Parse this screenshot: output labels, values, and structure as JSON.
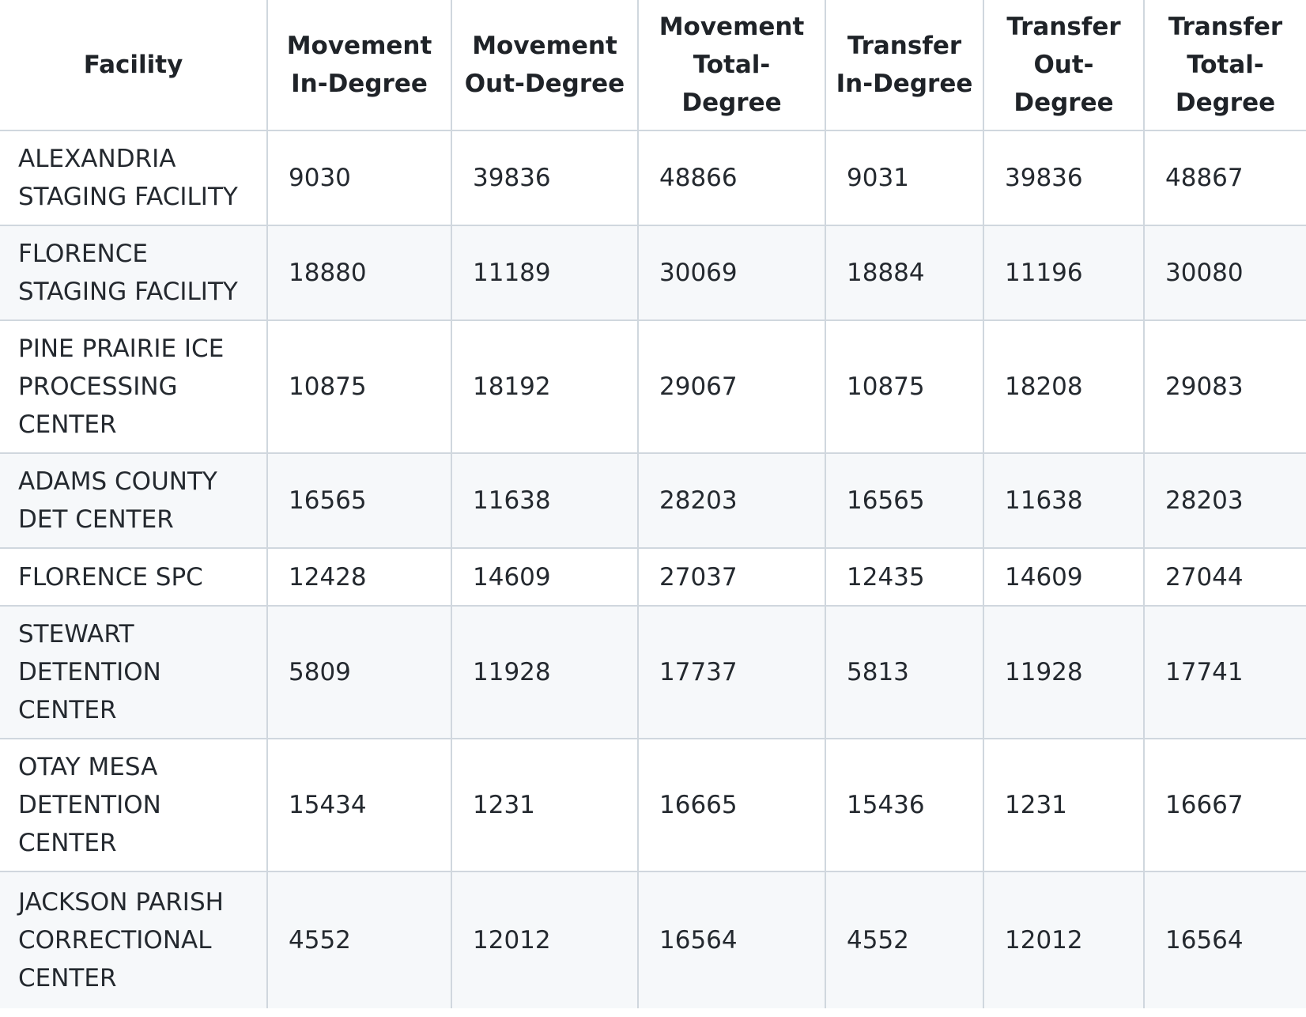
{
  "table": {
    "headers": {
      "facility": "Facility",
      "movement_in": "Movement In-Degree",
      "movement_out": "Movement Out-Degree",
      "movement_total": "Movement Total-Degree",
      "transfer_in": "Transfer In-Degree",
      "transfer_out": "Transfer Out-Degree",
      "transfer_total": "Transfer Total-Degree"
    },
    "rows": [
      {
        "facility": "ALEXANDRIA STAGING FACILITY",
        "movement_in": "9030",
        "movement_out": "39836",
        "movement_total": "48866",
        "transfer_in": "9031",
        "transfer_out": "39836",
        "transfer_total": "48867"
      },
      {
        "facility": "FLORENCE STAGING FACILITY",
        "movement_in": "18880",
        "movement_out": "11189",
        "movement_total": "30069",
        "transfer_in": "18884",
        "transfer_out": "11196",
        "transfer_total": "30080"
      },
      {
        "facility": "PINE PRAIRIE ICE PROCESSING CENTER",
        "movement_in": "10875",
        "movement_out": "18192",
        "movement_total": "29067",
        "transfer_in": "10875",
        "transfer_out": "18208",
        "transfer_total": "29083"
      },
      {
        "facility": "ADAMS COUNTY DET CENTER",
        "movement_in": "16565",
        "movement_out": "11638",
        "movement_total": "28203",
        "transfer_in": "16565",
        "transfer_out": "11638",
        "transfer_total": "28203"
      },
      {
        "facility": "FLORENCE SPC",
        "movement_in": "12428",
        "movement_out": "14609",
        "movement_total": "27037",
        "transfer_in": "12435",
        "transfer_out": "14609",
        "transfer_total": "27044"
      },
      {
        "facility": "STEWART DETENTION CENTER",
        "movement_in": "5809",
        "movement_out": "11928",
        "movement_total": "17737",
        "transfer_in": "5813",
        "transfer_out": "11928",
        "transfer_total": "17741"
      },
      {
        "facility": "OTAY MESA DETENTION CENTER",
        "movement_in": "15434",
        "movement_out": "1231",
        "movement_total": "16665",
        "transfer_in": "15436",
        "transfer_out": "1231",
        "transfer_total": "16667"
      },
      {
        "facility": "JACKSON PARISH CORRECTIONAL CENTER",
        "movement_in": "4552",
        "movement_out": "12012",
        "movement_total": "16564",
        "transfer_in": "4552",
        "transfer_out": "12012",
        "transfer_total": "16564"
      }
    ]
  }
}
